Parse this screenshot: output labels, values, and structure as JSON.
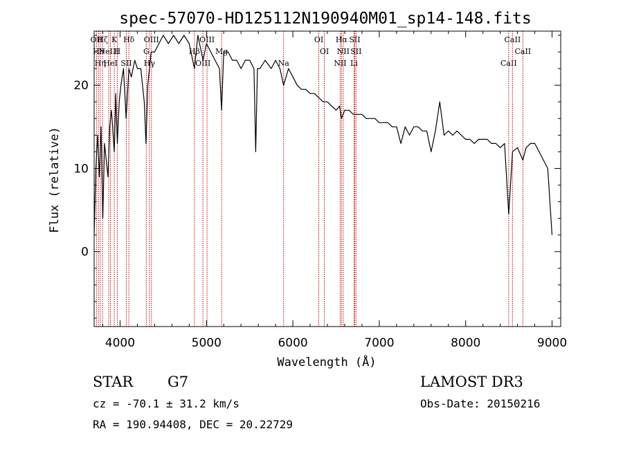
{
  "chart_data": {
    "type": "line",
    "title": "spec-57070-HD125112N190940M01_sp14-148.fits",
    "xlabel": "Wavelength (Å)",
    "ylabel": "Flux (relative)",
    "xlim": [
      3700,
      9100
    ],
    "ylim": [
      -9,
      26.5
    ],
    "xticks": [
      4000,
      5000,
      6000,
      7000,
      8000,
      9000
    ],
    "xtick_labels": [
      "4000",
      "5000",
      "6000",
      "7000",
      "8000",
      "9000"
    ],
    "yticks": [
      0,
      10,
      20
    ],
    "ytick_labels": [
      "0",
      "10",
      "20"
    ],
    "grid": false,
    "series": [
      {
        "color": "#000000",
        "x": [
          3700,
          3720,
          3740,
          3760,
          3780,
          3800,
          3820,
          3840,
          3860,
          3880,
          3900,
          3920,
          3933,
          3950,
          3968,
          3990,
          4010,
          4040,
          4070,
          4102,
          4130,
          4170,
          4200,
          4240,
          4280,
          4300,
          4320,
          4340,
          4360,
          4400,
          4450,
          4500,
          4560,
          4620,
          4680,
          4740,
          4800,
          4861,
          4900,
          4960,
          5000,
          5050,
          5100,
          5150,
          5175,
          5200,
          5250,
          5300,
          5350,
          5400,
          5450,
          5500,
          5550,
          5570,
          5590,
          5620,
          5680,
          5750,
          5800,
          5850,
          5893,
          5950,
          6000,
          6050,
          6100,
          6150,
          6200,
          6250,
          6300,
          6350,
          6400,
          6450,
          6500,
          6540,
          6563,
          6600,
          6650,
          6700,
          6750,
          6800,
          6850,
          6900,
          6950,
          7000,
          7050,
          7100,
          7150,
          7200,
          7250,
          7300,
          7350,
          7400,
          7450,
          7500,
          7550,
          7600,
          7650,
          7700,
          7750,
          7800,
          7850,
          7900,
          7950,
          8000,
          8050,
          8100,
          8150,
          8200,
          8250,
          8300,
          8350,
          8400,
          8450,
          8498,
          8542,
          8600,
          8662,
          8700,
          8750,
          8800,
          8850,
          8900,
          8950,
          9000
        ],
        "y": [
          2,
          10,
          14,
          9,
          15,
          4,
          13,
          11,
          9,
          15,
          17,
          14,
          12,
          19,
          13,
          18,
          20,
          22,
          16,
          22,
          21,
          23,
          22,
          22,
          18,
          13,
          20,
          22,
          24,
          24,
          25,
          26,
          25,
          26,
          25,
          26,
          25,
          22,
          26,
          23,
          25,
          24,
          23,
          22,
          17,
          24,
          24,
          23,
          23,
          22,
          23,
          23,
          22,
          12,
          22,
          22,
          23,
          22,
          23,
          22,
          20,
          22,
          21,
          20,
          19.5,
          19.5,
          19,
          19,
          18.5,
          18,
          18,
          17.5,
          17,
          17.5,
          16,
          17,
          17,
          16.5,
          16.5,
          16.5,
          16,
          16,
          16,
          15.5,
          15.5,
          15.5,
          15,
          15,
          13,
          15,
          14,
          15,
          15,
          14.5,
          14.5,
          12,
          14.5,
          18,
          14,
          14.5,
          14,
          14.5,
          14,
          13.5,
          13.5,
          13,
          13.5,
          13.5,
          13.5,
          13,
          13,
          12.5,
          13,
          4.5,
          12,
          12.5,
          11,
          12.5,
          13,
          13,
          12,
          11,
          10,
          2
        ]
      }
    ],
    "lines": [
      {
        "x": 3727,
        "label": "OII"
      },
      {
        "x": 3750,
        "label": "Hθ"
      },
      {
        "x": 3771,
        "label": "Hη"
      },
      {
        "x": 3798,
        "label": "Hζ"
      },
      {
        "x": 3869,
        "label": "NeIII"
      },
      {
        "x": 3889,
        "label": "HeI"
      },
      {
        "x": 3933,
        "label": "K"
      },
      {
        "x": 3968,
        "label": "H"
      },
      {
        "x": 4072,
        "label": "SII"
      },
      {
        "x": 4102,
        "label": "Hδ"
      },
      {
        "x": 4304,
        "label": "G"
      },
      {
        "x": 4340,
        "label": "Hγ"
      },
      {
        "x": 4363,
        "label": "OIII"
      },
      {
        "x": 4861,
        "label": "Hβ"
      },
      {
        "x": 4959,
        "label": "OIII"
      },
      {
        "x": 5007,
        "label": "OIII"
      },
      {
        "x": 5175,
        "label": "Mg"
      },
      {
        "x": 5893,
        "label": "Na"
      },
      {
        "x": 6300,
        "label": "OI"
      },
      {
        "x": 6364,
        "label": "OI"
      },
      {
        "x": 6548,
        "label": "NII"
      },
      {
        "x": 6563,
        "label": "Hα"
      },
      {
        "x": 6583,
        "label": "NII"
      },
      {
        "x": 6708,
        "label": "Li"
      },
      {
        "x": 6716,
        "label": "SII"
      },
      {
        "x": 6731,
        "label": "SII"
      },
      {
        "x": 8498,
        "label": "CaII"
      },
      {
        "x": 8542,
        "label": "CaII"
      },
      {
        "x": 8662,
        "label": "CaII"
      }
    ]
  },
  "footer": {
    "class_label": "STAR",
    "subclass": "G7",
    "survey": "LAMOST DR3",
    "velocity": "cz = -70.1 ± 31.2 km/s",
    "obs_date": "Obs-Date: 20150216",
    "coords": "RA = 190.94408, DEC =  20.22729"
  }
}
